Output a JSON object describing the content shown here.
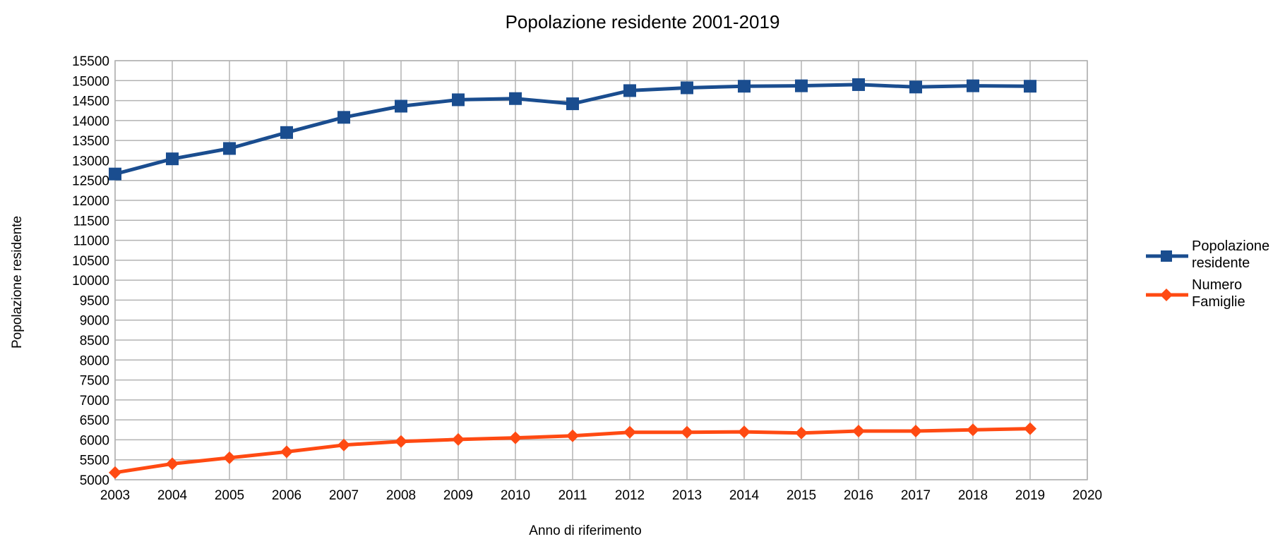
{
  "chart_data": {
    "type": "line",
    "title": "Popolazione residente 2001-2019",
    "xlabel": "Anno di riferimento",
    "ylabel": "Popolazione residente",
    "x_ticks": [
      "2003",
      "2004",
      "2005",
      "2006",
      "2007",
      "2008",
      "2009",
      "2010",
      "2011",
      "2012",
      "2013",
      "2014",
      "2015",
      "2016",
      "2017",
      "2018",
      "2019",
      "2020"
    ],
    "xlim": [
      2003,
      2020
    ],
    "ylim": [
      5000,
      15500
    ],
    "y_step": 500,
    "grid": true,
    "legend_position": "right",
    "series": [
      {
        "name": [
          "Popolazione",
          "residente"
        ],
        "color": "#1a4d8f",
        "marker": "square",
        "x": [
          2003,
          2004,
          2005,
          2006,
          2007,
          2008,
          2009,
          2010,
          2011,
          2012,
          2013,
          2014,
          2015,
          2016,
          2017,
          2018,
          2019
        ],
        "values": [
          12660,
          13040,
          13300,
          13700,
          14080,
          14360,
          14520,
          14550,
          14420,
          14750,
          14820,
          14860,
          14870,
          14900,
          14840,
          14870,
          14860
        ]
      },
      {
        "name": [
          "Numero",
          "Famiglie"
        ],
        "color": "#ff4a12",
        "marker": "diamond",
        "x": [
          2003,
          2004,
          2005,
          2006,
          2007,
          2008,
          2009,
          2010,
          2011,
          2012,
          2013,
          2014,
          2015,
          2016,
          2017,
          2018,
          2019
        ],
        "values": [
          5180,
          5400,
          5550,
          5700,
          5870,
          5960,
          6010,
          6050,
          6100,
          6190,
          6190,
          6200,
          6170,
          6220,
          6220,
          6250,
          6280
        ]
      }
    ]
  }
}
